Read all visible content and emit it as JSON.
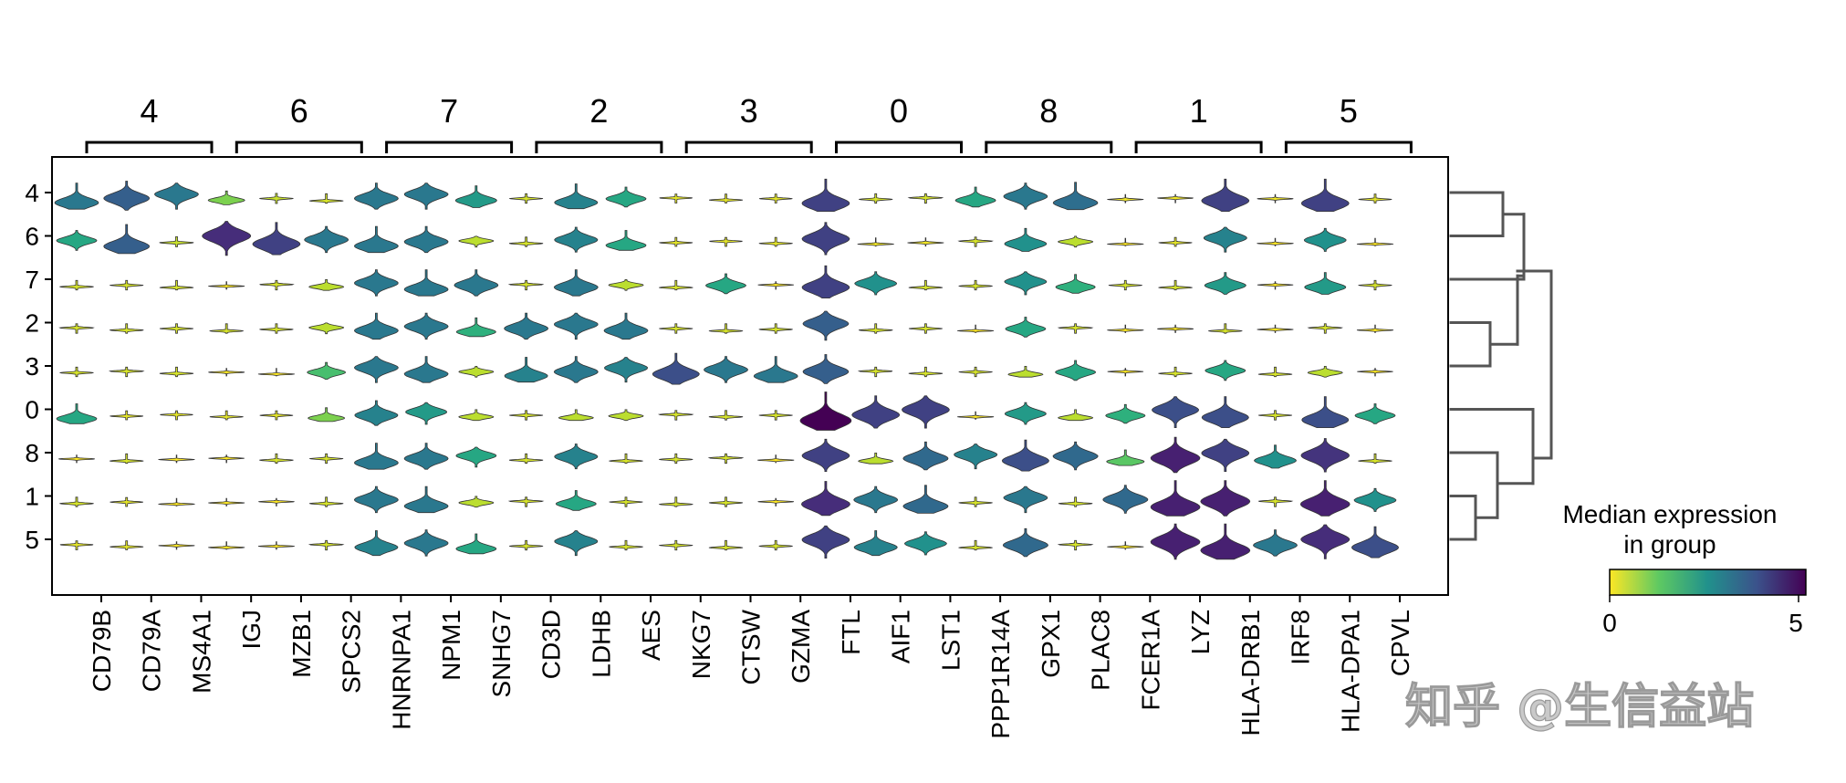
{
  "chart_data": {
    "type": "stacked_violin",
    "title": "",
    "groups": [
      "4",
      "6",
      "7",
      "2",
      "3",
      "0",
      "8",
      "1",
      "5"
    ],
    "gene_groups": [
      {
        "label": "4",
        "genes": [
          "CD79B",
          "CD79A",
          "MS4A1"
        ]
      },
      {
        "label": "6",
        "genes": [
          "IGJ",
          "MZB1",
          "SPCS2"
        ]
      },
      {
        "label": "7",
        "genes": [
          "HNRNPA1",
          "NPM1",
          "SNHG7"
        ]
      },
      {
        "label": "2",
        "genes": [
          "CD3D",
          "LDHB",
          "AES"
        ]
      },
      {
        "label": "3",
        "genes": [
          "NKG7",
          "CTSW",
          "GZMA"
        ]
      },
      {
        "label": "0",
        "genes": [
          "FTL",
          "AIF1",
          "LST1"
        ]
      },
      {
        "label": "8",
        "genes": [
          "GPX1",
          "PLAC8",
          "PPP1R14A"
        ]
      },
      {
        "label": "1",
        "genes": [
          "FCER1A",
          "LYZ",
          "HLA-DRB1"
        ]
      },
      {
        "label": "5",
        "genes": [
          "IRF8",
          "HLA-DPA1",
          "CPVL"
        ]
      }
    ],
    "genes": [
      "CD79B",
      "CD79A",
      "MS4A1",
      "IGJ",
      "MZB1",
      "SPCS2",
      "HNRNPA1",
      "NPM1",
      "SNHG7",
      "CD3D",
      "LDHB",
      "AES",
      "NKG7",
      "CTSW",
      "GZMA",
      "FTL",
      "AIF1",
      "LST1",
      "PPP1R14A",
      "GPX1",
      "PLAC8",
      "FCER1A",
      "LYZ",
      "HLA-DRB1",
      "IRF8",
      "HLA-DPA1",
      "CPVL"
    ],
    "gene_group_labels": [
      "4",
      "4",
      "4",
      "6",
      "6",
      "6",
      "7",
      "7",
      "7",
      "2",
      "2",
      "2",
      "3",
      "3",
      "3",
      "0",
      "0",
      "0",
      "8",
      "8",
      "8",
      "1",
      "1",
      "1",
      "5",
      "5",
      "5"
    ],
    "median_expression": [
      [
        3.0,
        3.5,
        3.0,
        1.0,
        0.4,
        0.3,
        3.0,
        3.0,
        2.3,
        0.3,
        2.8,
        2.0,
        0.2,
        0.2,
        0.2,
        4.0,
        0.3,
        0.3,
        2.0,
        3.0,
        3.2,
        0.1,
        0.1,
        4.0,
        0.1,
        4.0,
        0.2
      ],
      [
        2.0,
        3.5,
        0.4,
        4.3,
        4.0,
        3.0,
        3.0,
        3.0,
        0.5,
        0.3,
        2.8,
        2.0,
        0.2,
        0.2,
        0.2,
        4.0,
        0.1,
        0.1,
        0.3,
        2.5,
        0.5,
        0.0,
        0.2,
        2.8,
        0.0,
        2.5,
        0.0
      ],
      [
        0.3,
        0.3,
        0.3,
        0.0,
        0.3,
        0.5,
        3.0,
        3.0,
        3.0,
        0.3,
        3.0,
        0.5,
        0.3,
        2.0,
        0.0,
        4.0,
        2.5,
        0.3,
        0.3,
        2.5,
        1.8,
        0.3,
        0.3,
        2.3,
        0.0,
        2.3,
        0.3
      ],
      [
        0.3,
        0.3,
        0.3,
        0.3,
        0.3,
        0.5,
        3.0,
        3.0,
        1.8,
        3.0,
        3.0,
        3.0,
        0.3,
        0.3,
        0.3,
        3.5,
        0.3,
        0.3,
        0.0,
        2.0,
        0.3,
        0.0,
        0.0,
        0.3,
        0.0,
        0.3,
        0.0
      ],
      [
        0.3,
        0.3,
        0.3,
        0.0,
        0.0,
        1.5,
        3.0,
        3.0,
        0.5,
        2.8,
        3.0,
        2.8,
        3.8,
        3.0,
        3.0,
        3.5,
        0.3,
        0.3,
        0.3,
        0.5,
        2.0,
        0.0,
        0.3,
        2.0,
        0.3,
        0.5,
        0.0
      ],
      [
        2.0,
        0.2,
        0.2,
        0.2,
        0.2,
        1.0,
        2.8,
        2.3,
        0.5,
        0.3,
        0.5,
        0.5,
        0.3,
        0.3,
        0.3,
        5.0,
        4.0,
        4.0,
        0.0,
        2.3,
        0.5,
        1.8,
        3.8,
        3.8,
        0.3,
        3.8,
        2.0
      ],
      [
        0.0,
        0.3,
        0.0,
        0.0,
        0.3,
        0.3,
        3.0,
        3.0,
        2.0,
        0.3,
        2.8,
        0.3,
        0.3,
        0.3,
        0.0,
        4.0,
        0.5,
        3.3,
        2.8,
        3.8,
        3.3,
        1.3,
        4.5,
        4.0,
        2.5,
        4.2,
        0.3
      ],
      [
        0.3,
        0.2,
        0.0,
        0.0,
        0.0,
        0.3,
        3.0,
        3.0,
        0.5,
        0.3,
        2.0,
        0.3,
        0.3,
        0.3,
        0.0,
        4.3,
        3.0,
        3.3,
        0.3,
        3.0,
        0.3,
        3.3,
        4.5,
        4.5,
        0.3,
        4.5,
        2.5
      ],
      [
        0.2,
        0.2,
        0.0,
        0.0,
        0.0,
        0.3,
        2.8,
        3.0,
        2.0,
        0.3,
        2.8,
        0.3,
        0.3,
        0.3,
        0.3,
        4.0,
        2.8,
        2.5,
        0.3,
        3.3,
        0.3,
        0.0,
        4.5,
        4.5,
        3.0,
        4.3,
        3.8
      ]
    ],
    "dendrogram_clusters": [
      [
        "4",
        "6"
      ],
      [
        "7"
      ],
      [
        "2",
        "3"
      ],
      [
        "0"
      ],
      [
        "8"
      ],
      [
        "1",
        "5"
      ]
    ],
    "colorbar": {
      "title_line1": "Median expression",
      "title_line2": "in group",
      "min_label": "0",
      "max_label": "5",
      "range": [
        0,
        5
      ],
      "colormap": "viridis_r"
    },
    "watermark": "知乎 @生信益站"
  }
}
